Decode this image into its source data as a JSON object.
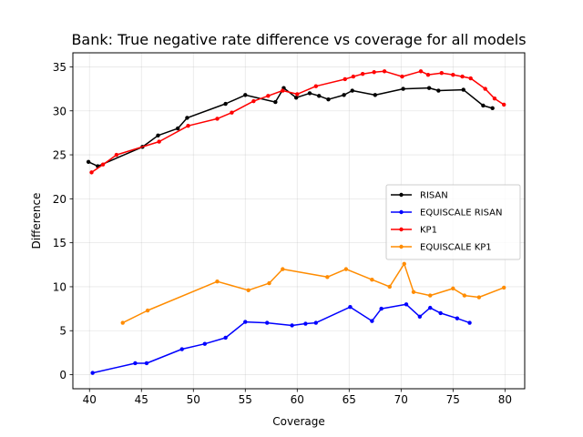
{
  "chart_data": {
    "type": "line",
    "title": "Bank: True negative rate difference vs coverage for all models",
    "xlabel": "Coverage",
    "ylabel": "Difference",
    "xlim": [
      38.4,
      81.9
    ],
    "ylim": [
      -1.6,
      36.6
    ],
    "xticks": [
      "40",
      "45",
      "50",
      "55",
      "60",
      "65",
      "70",
      "75",
      "80"
    ],
    "yticks": [
      "0",
      "5",
      "10",
      "15",
      "20",
      "25",
      "30",
      "35"
    ],
    "grid": true,
    "legend_position": "center-right",
    "series": [
      {
        "name": "RISAN",
        "color": "#000000",
        "points": [
          [
            39.9,
            24.2
          ],
          [
            40.8,
            23.7
          ],
          [
            45.1,
            25.9
          ],
          [
            46.6,
            27.2
          ],
          [
            48.5,
            28.0
          ],
          [
            49.4,
            29.2
          ],
          [
            53.1,
            30.8
          ],
          [
            55.0,
            31.8
          ],
          [
            57.9,
            31.0
          ],
          [
            58.7,
            32.6
          ],
          [
            59.9,
            31.5
          ],
          [
            61.2,
            32.0
          ],
          [
            62.1,
            31.7
          ],
          [
            63.0,
            31.3
          ],
          [
            64.5,
            31.8
          ],
          [
            65.3,
            32.3
          ],
          [
            67.5,
            31.8
          ],
          [
            70.2,
            32.5
          ],
          [
            72.7,
            32.6
          ],
          [
            73.6,
            32.3
          ],
          [
            76.0,
            32.4
          ],
          [
            77.9,
            30.6
          ],
          [
            78.8,
            30.3
          ]
        ]
      },
      {
        "name": "EQUISCALE RISAN",
        "color": "#0000ff",
        "points": [
          [
            40.3,
            0.2
          ],
          [
            44.4,
            1.3
          ],
          [
            45.5,
            1.3
          ],
          [
            48.9,
            2.9
          ],
          [
            51.1,
            3.5
          ],
          [
            53.1,
            4.2
          ],
          [
            55.0,
            6.0
          ],
          [
            57.1,
            5.9
          ],
          [
            59.5,
            5.6
          ],
          [
            60.8,
            5.8
          ],
          [
            61.8,
            5.9
          ],
          [
            65.1,
            7.7
          ],
          [
            67.2,
            6.1
          ],
          [
            68.1,
            7.5
          ],
          [
            70.5,
            8.0
          ],
          [
            71.8,
            6.6
          ],
          [
            72.8,
            7.6
          ],
          [
            73.8,
            7.0
          ],
          [
            75.4,
            6.4
          ],
          [
            76.6,
            5.9
          ]
        ]
      },
      {
        "name": "KP1",
        "color": "#ff0000",
        "points": [
          [
            40.2,
            23.0
          ],
          [
            41.3,
            23.9
          ],
          [
            42.6,
            25.0
          ],
          [
            46.7,
            26.5
          ],
          [
            49.5,
            28.3
          ],
          [
            52.3,
            29.1
          ],
          [
            53.7,
            29.8
          ],
          [
            55.8,
            31.1
          ],
          [
            57.2,
            31.7
          ],
          [
            58.6,
            32.3
          ],
          [
            60.0,
            31.9
          ],
          [
            61.8,
            32.8
          ],
          [
            64.6,
            33.6
          ],
          [
            65.4,
            33.9
          ],
          [
            66.3,
            34.2
          ],
          [
            67.4,
            34.4
          ],
          [
            68.4,
            34.5
          ],
          [
            70.1,
            33.9
          ],
          [
            71.9,
            34.5
          ],
          [
            72.6,
            34.1
          ],
          [
            73.9,
            34.3
          ],
          [
            75.0,
            34.1
          ],
          [
            75.9,
            33.9
          ],
          [
            76.7,
            33.7
          ],
          [
            78.1,
            32.5
          ],
          [
            79.0,
            31.4
          ],
          [
            79.9,
            30.7
          ]
        ]
      },
      {
        "name": "EQUISCALE KP1",
        "color": "#ff8c00",
        "points": [
          [
            43.2,
            5.9
          ],
          [
            45.6,
            7.3
          ],
          [
            52.3,
            10.6
          ],
          [
            55.3,
            9.6
          ],
          [
            57.3,
            10.4
          ],
          [
            58.6,
            12.0
          ],
          [
            62.9,
            11.1
          ],
          [
            64.7,
            12.0
          ],
          [
            67.2,
            10.8
          ],
          [
            68.9,
            10.0
          ],
          [
            70.3,
            12.6
          ],
          [
            71.2,
            9.4
          ],
          [
            72.8,
            9.0
          ],
          [
            75.0,
            9.8
          ],
          [
            76.1,
            9.0
          ],
          [
            77.5,
            8.8
          ],
          [
            79.9,
            9.9
          ]
        ]
      }
    ]
  }
}
